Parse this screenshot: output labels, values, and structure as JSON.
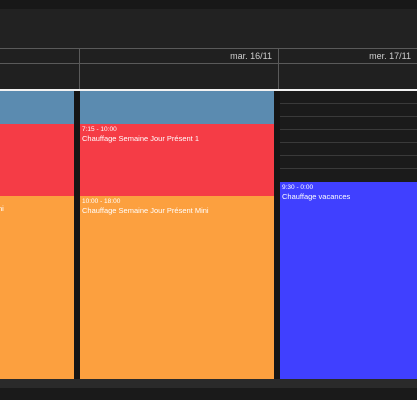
{
  "header": {
    "days": [
      {
        "label": ""
      },
      {
        "label": "mar. 16/11"
      },
      {
        "label": "mer. 17/11"
      }
    ]
  },
  "events": [
    {
      "id": "c0-blue",
      "time": "",
      "title": "",
      "color": "#5b8bb0"
    },
    {
      "id": "c0-red",
      "time": "",
      "title": "",
      "color": "#f53c46"
    },
    {
      "id": "c0-orange",
      "time": "",
      "title": "ni",
      "color": "#fca03f"
    },
    {
      "id": "c1-blue",
      "time": "",
      "title": "",
      "color": "#5b8bb0"
    },
    {
      "id": "c1-red",
      "time": "7:15 - 10:00",
      "title": "Chauffage Semaine Jour Présent 1",
      "color": "#f53c46"
    },
    {
      "id": "c1-orange",
      "time": "10:00 - 18:00",
      "title": "Chauffage Semaine Jour Présent Mini",
      "color": "#fca03f"
    },
    {
      "id": "c2-blue",
      "time": "9:30 - 0:00",
      "title": "Chauffage vacances",
      "color": "#4040ff"
    }
  ]
}
